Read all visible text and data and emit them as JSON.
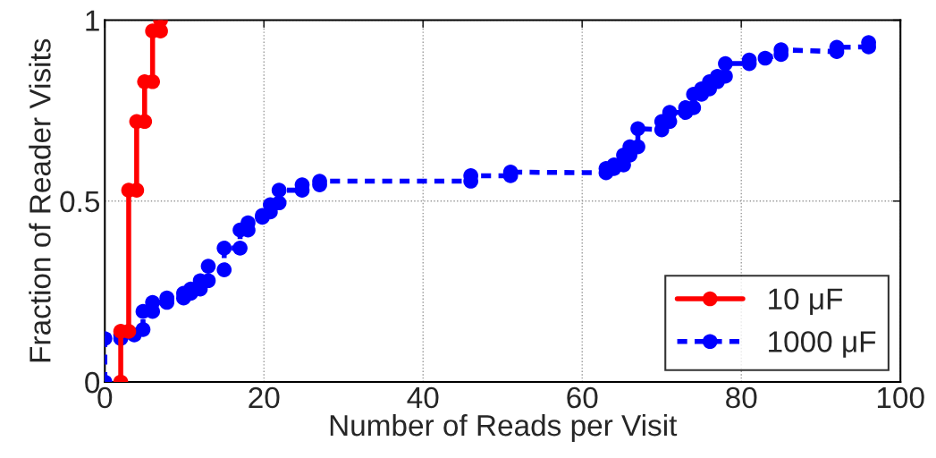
{
  "chart_data": {
    "type": "line",
    "xlabel": "Number of Reads per Visit",
    "ylabel": "Fraction of Reader Visits",
    "xlim": [
      0,
      100
    ],
    "ylim": [
      0,
      1
    ],
    "xticks": [
      0,
      20,
      40,
      60,
      80,
      100
    ],
    "yticks": [
      0,
      {
        "value": 0.5,
        "label": "0.5"
      },
      1
    ],
    "grid": true,
    "legend": "bottom right",
    "marker": "circle",
    "series": [
      {
        "name": "10 μF",
        "color": "#ff0000",
        "line_style": "solid",
        "x": [
          2,
          2,
          3,
          3,
          4,
          4,
          5,
          5,
          6,
          6,
          7,
          7
        ],
        "values": [
          0,
          0.14,
          0.14,
          0.53,
          0.53,
          0.72,
          0.72,
          0.83,
          0.83,
          0.97,
          0.97,
          1
        ]
      },
      {
        "name": "1000 μF",
        "color": "#0000ff",
        "line_style": "dashed",
        "x": [
          0,
          0,
          2,
          2,
          3.7,
          4.8,
          4.8,
          6,
          6,
          7.8,
          7.8,
          9.9,
          9.9,
          10.8,
          10.8,
          12,
          12,
          13,
          13,
          15,
          15,
          17,
          17,
          18,
          18,
          19.8,
          19.8,
          20.8,
          20.8,
          21.9,
          21.9,
          24.8,
          24.8,
          27,
          27,
          46,
          46,
          51,
          51,
          63,
          63,
          64,
          64,
          65.2,
          65.2,
          66,
          66,
          67,
          67,
          70,
          70,
          71,
          71,
          73,
          73,
          74,
          74,
          75,
          75,
          76,
          76,
          77,
          77,
          78,
          78,
          81,
          81,
          83,
          85,
          85,
          92,
          92,
          96,
          96
        ],
        "values": [
          0,
          0.12,
          0.12,
          0.13,
          0.13,
          0.145,
          0.195,
          0.195,
          0.22,
          0.22,
          0.232,
          0.232,
          0.245,
          0.245,
          0.257,
          0.257,
          0.28,
          0.28,
          0.32,
          0.31,
          0.37,
          0.37,
          0.42,
          0.42,
          0.44,
          0.455,
          0.46,
          0.47,
          0.49,
          0.495,
          0.53,
          0.53,
          0.545,
          0.545,
          0.555,
          0.555,
          0.57,
          0.57,
          0.58,
          0.578,
          0.59,
          0.59,
          0.6,
          0.6,
          0.627,
          0.627,
          0.65,
          0.65,
          0.7,
          0.697,
          0.72,
          0.72,
          0.745,
          0.745,
          0.758,
          0.758,
          0.795,
          0.795,
          0.81,
          0.81,
          0.83,
          0.83,
          0.845,
          0.845,
          0.88,
          0.88,
          0.89,
          0.895,
          0.905,
          0.918,
          0.913,
          0.925,
          0.926,
          0.938
        ]
      }
    ]
  }
}
